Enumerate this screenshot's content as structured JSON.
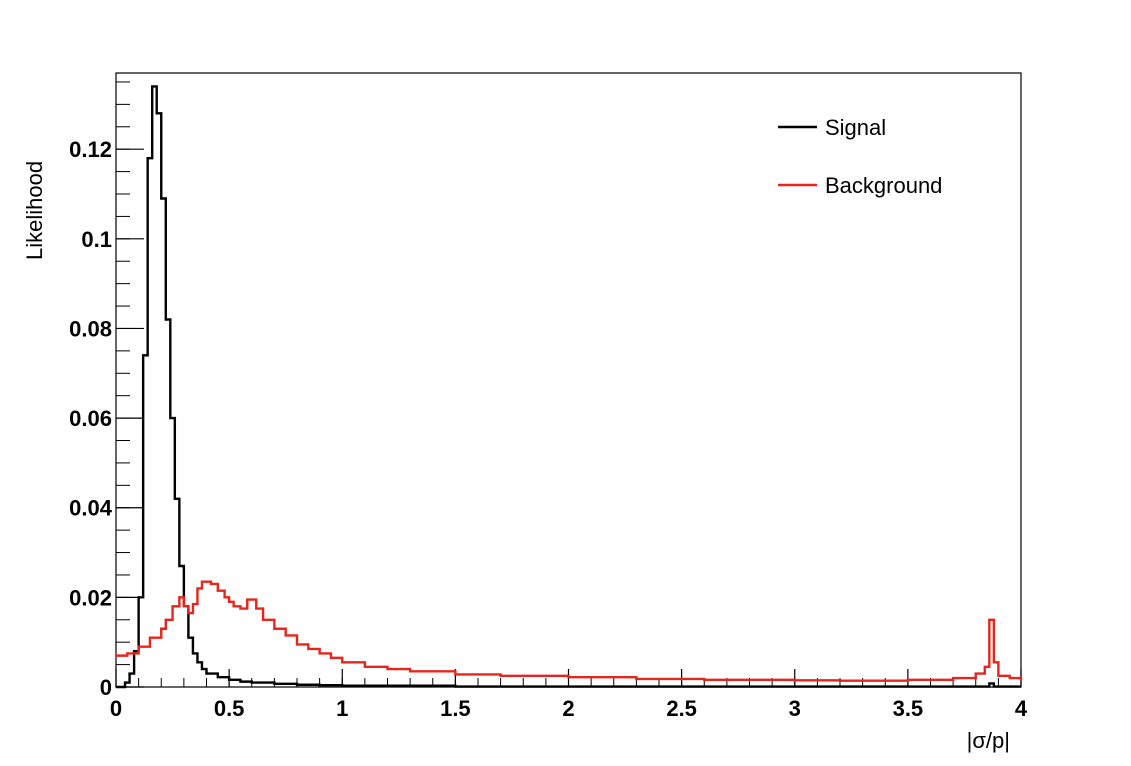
{
  "chart_data": {
    "type": "line",
    "xlabel": "|σ/p|",
    "ylabel": "Likelihood",
    "xlim": [
      0,
      4
    ],
    "ylim": [
      0,
      0.137
    ],
    "x_ticks": [
      {
        "value": 0,
        "label": "0"
      },
      {
        "value": 0.5,
        "label": "0.5"
      },
      {
        "value": 1,
        "label": "1"
      },
      {
        "value": 1.5,
        "label": "1.5"
      },
      {
        "value": 2,
        "label": "2"
      },
      {
        "value": 2.5,
        "label": "2.5"
      },
      {
        "value": 3,
        "label": "3"
      },
      {
        "value": 3.5,
        "label": "3.5"
      },
      {
        "value": 4,
        "label": "4"
      }
    ],
    "y_ticks": [
      {
        "value": 0,
        "label": "0"
      },
      {
        "value": 0.02,
        "label": "0.02"
      },
      {
        "value": 0.04,
        "label": "0.04"
      },
      {
        "value": 0.06,
        "label": "0.06"
      },
      {
        "value": 0.08,
        "label": "0.08"
      },
      {
        "value": 0.1,
        "label": "0.1"
      },
      {
        "value": 0.12,
        "label": "0.12"
      }
    ],
    "grid": false,
    "legend_position": "top-right",
    "series": [
      {
        "name": "Signal",
        "color": "#000000",
        "style": "step",
        "x": [
          0,
          0.04,
          0.06,
          0.08,
          0.1,
          0.12,
          0.14,
          0.16,
          0.18,
          0.2,
          0.22,
          0.24,
          0.26,
          0.28,
          0.3,
          0.32,
          0.34,
          0.36,
          0.38,
          0.4,
          0.45,
          0.5,
          0.55,
          0.6,
          0.7,
          0.8,
          0.9,
          1.0,
          1.5,
          2.0,
          3.0,
          3.86,
          3.88,
          4.0
        ],
        "y": [
          0,
          0.001,
          0.003,
          0.008,
          0.02,
          0.074,
          0.118,
          0.134,
          0.128,
          0.109,
          0.082,
          0.06,
          0.042,
          0.027,
          0.018,
          0.011,
          0.0075,
          0.0055,
          0.004,
          0.003,
          0.0022,
          0.0016,
          0.0012,
          0.001,
          0.0007,
          0.0005,
          0.0004,
          0.0003,
          0.0001,
          0.0001,
          0.0001,
          0.0008,
          0.0001,
          0.0001
        ]
      },
      {
        "name": "Background",
        "color": "#e8251c",
        "style": "step",
        "x": [
          0,
          0.05,
          0.1,
          0.15,
          0.2,
          0.22,
          0.25,
          0.28,
          0.3,
          0.32,
          0.34,
          0.36,
          0.38,
          0.4,
          0.42,
          0.45,
          0.48,
          0.5,
          0.52,
          0.55,
          0.58,
          0.6,
          0.62,
          0.65,
          0.7,
          0.75,
          0.8,
          0.85,
          0.9,
          0.95,
          1.0,
          1.1,
          1.2,
          1.3,
          1.5,
          1.7,
          2.0,
          2.3,
          2.6,
          3.0,
          3.2,
          3.5,
          3.7,
          3.8,
          3.84,
          3.86,
          3.88,
          3.9,
          3.95,
          4.0
        ],
        "y": [
          0.007,
          0.0075,
          0.009,
          0.011,
          0.013,
          0.015,
          0.018,
          0.02,
          0.018,
          0.0165,
          0.0185,
          0.022,
          0.0235,
          0.0235,
          0.023,
          0.0215,
          0.02,
          0.019,
          0.018,
          0.0175,
          0.0195,
          0.0195,
          0.0175,
          0.015,
          0.013,
          0.0115,
          0.0095,
          0.0085,
          0.0075,
          0.0065,
          0.0055,
          0.0045,
          0.004,
          0.0035,
          0.0028,
          0.0025,
          0.0022,
          0.0018,
          0.0016,
          0.0015,
          0.0014,
          0.0016,
          0.002,
          0.003,
          0.0045,
          0.015,
          0.0055,
          0.0025,
          0.002,
          0.0015
        ]
      }
    ]
  }
}
